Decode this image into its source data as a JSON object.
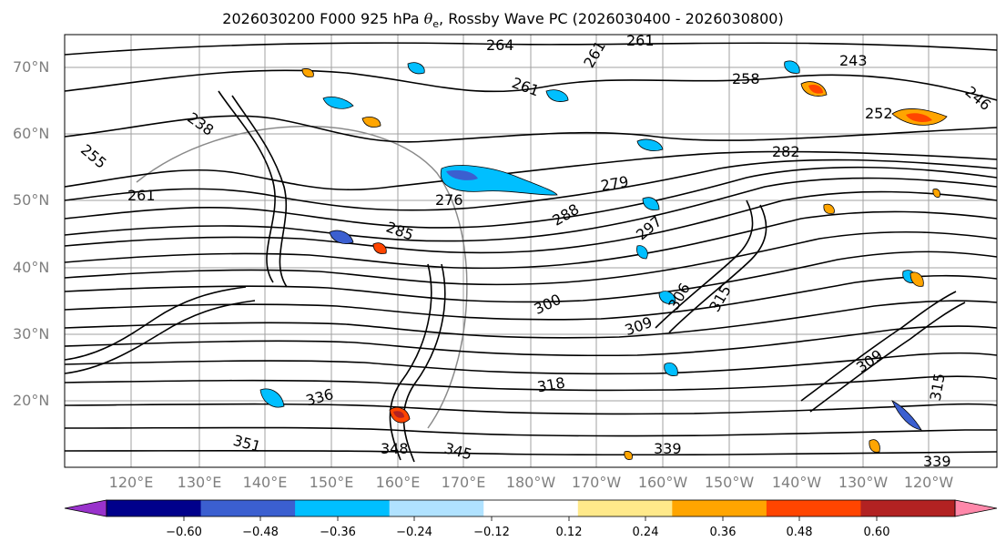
{
  "title": {
    "prefix": "2026030200 F000 925 hPa ",
    "symbol": "θ",
    "subscript": "e",
    "suffix": ", Rossby Wave PC (2026030400 - 2026030800)"
  },
  "map": {
    "lat_labels": [
      "70°N",
      "60°N",
      "50°N",
      "40°N",
      "30°N",
      "20°N"
    ],
    "lon_labels": [
      "120°E",
      "130°E",
      "140°E",
      "150°E",
      "160°E",
      "170°E",
      "180°W",
      "170°W",
      "160°W",
      "150°W",
      "140°W",
      "130°W",
      "120°W"
    ],
    "contour_labels": [
      "264",
      "261",
      "261",
      "261",
      "258",
      "243",
      "246",
      "252",
      "238",
      "255",
      "261",
      "276",
      "279",
      "282",
      "288",
      "285",
      "297",
      "300",
      "306",
      "309",
      "315",
      "318",
      "336",
      "351",
      "348",
      "345",
      "339",
      "309",
      "315",
      "339"
    ],
    "colors": {
      "grid": "#a0a0a0",
      "contour": "#000000",
      "blue_light": "#00bfff",
      "blue_mid": "#3b5fd0",
      "orange": "#ff9f00",
      "red": "#ff4500",
      "darkred": "#b22222"
    }
  },
  "colorbar": {
    "colors": [
      "#9932cc",
      "#00008b",
      "#3b5fd0",
      "#00bfff",
      "#b0e2ff",
      "#ffffff",
      "#ffe98a",
      "#ffa500",
      "#ff4500",
      "#b22222",
      "#ff88aa"
    ],
    "ticks": [
      "−0.60",
      "−0.48",
      "−0.36",
      "−0.24",
      "−0.12",
      "0.12",
      "0.24",
      "0.36",
      "0.48",
      "0.60"
    ]
  }
}
